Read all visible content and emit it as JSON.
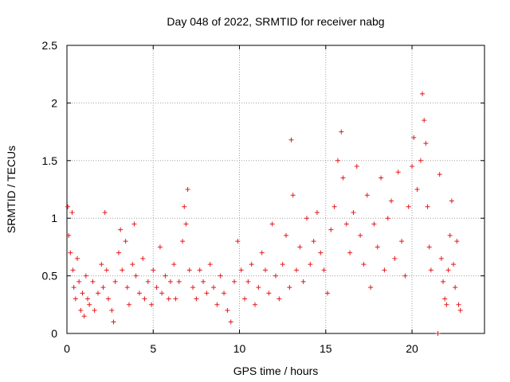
{
  "chart_data": {
    "type": "scatter",
    "title": "Day 048 of 2022, SRMTID for receiver nabg",
    "xlabel": "GPS time / hours",
    "ylabel": "SRMTID / TECUs",
    "xlim": [
      0,
      24.2
    ],
    "ylim": [
      0,
      2.5
    ],
    "x_ticks": [
      {
        "value": 0,
        "label": "0"
      },
      {
        "value": 5,
        "label": "5"
      },
      {
        "value": 10,
        "label": "10"
      },
      {
        "value": 15,
        "label": "15"
      },
      {
        "value": 20,
        "label": "20"
      }
    ],
    "y_ticks": [
      {
        "value": 0,
        "label": "0"
      },
      {
        "value": 0.5,
        "label": "0.5"
      },
      {
        "value": 1,
        "label": "1"
      },
      {
        "value": 1.5,
        "label": "1.5"
      },
      {
        "value": 2,
        "label": "2"
      },
      {
        "value": 2.5,
        "label": "2.5"
      }
    ],
    "grid": true,
    "marker": "+",
    "series_color": "#e41a1c",
    "series": [
      {
        "name": "SRMTID",
        "points": [
          [
            0.05,
            1.1
          ],
          [
            0.1,
            0.85
          ],
          [
            0.2,
            0.7
          ],
          [
            0.3,
            1.05
          ],
          [
            0.35,
            0.55
          ],
          [
            0.4,
            0.4
          ],
          [
            0.5,
            0.3
          ],
          [
            0.6,
            0.65
          ],
          [
            0.7,
            0.45
          ],
          [
            0.8,
            0.2
          ],
          [
            0.9,
            0.35
          ],
          [
            1.0,
            0.15
          ],
          [
            1.1,
            0.5
          ],
          [
            1.2,
            0.3
          ],
          [
            1.3,
            0.25
          ],
          [
            1.5,
            0.45
          ],
          [
            1.6,
            0.2
          ],
          [
            1.8,
            0.35
          ],
          [
            2.0,
            0.6
          ],
          [
            2.1,
            0.4
          ],
          [
            2.2,
            1.05
          ],
          [
            2.3,
            0.55
          ],
          [
            2.4,
            0.3
          ],
          [
            2.6,
            0.2
          ],
          [
            2.7,
            0.1
          ],
          [
            2.8,
            0.45
          ],
          [
            3.0,
            0.7
          ],
          [
            3.1,
            0.9
          ],
          [
            3.2,
            0.55
          ],
          [
            3.4,
            0.8
          ],
          [
            3.5,
            0.4
          ],
          [
            3.6,
            0.25
          ],
          [
            3.8,
            0.6
          ],
          [
            3.9,
            0.95
          ],
          [
            4.0,
            0.5
          ],
          [
            4.2,
            0.35
          ],
          [
            4.4,
            0.65
          ],
          [
            4.5,
            0.3
          ],
          [
            4.7,
            0.45
          ],
          [
            4.9,
            0.25
          ],
          [
            5.0,
            0.55
          ],
          [
            5.2,
            0.4
          ],
          [
            5.4,
            0.75
          ],
          [
            5.5,
            0.35
          ],
          [
            5.7,
            0.5
          ],
          [
            5.9,
            0.3
          ],
          [
            6.0,
            0.45
          ],
          [
            6.2,
            0.6
          ],
          [
            6.3,
            0.3
          ],
          [
            6.5,
            0.45
          ],
          [
            6.7,
            0.8
          ],
          [
            6.8,
            1.1
          ],
          [
            6.9,
            0.95
          ],
          [
            7.0,
            1.25
          ],
          [
            7.1,
            0.55
          ],
          [
            7.3,
            0.4
          ],
          [
            7.5,
            0.3
          ],
          [
            7.7,
            0.55
          ],
          [
            7.9,
            0.45
          ],
          [
            8.1,
            0.35
          ],
          [
            8.3,
            0.6
          ],
          [
            8.5,
            0.4
          ],
          [
            8.7,
            0.25
          ],
          [
            8.9,
            0.5
          ],
          [
            9.1,
            0.35
          ],
          [
            9.3,
            0.2
          ],
          [
            9.5,
            0.1
          ],
          [
            9.7,
            0.45
          ],
          [
            9.9,
            0.8
          ],
          [
            10.1,
            0.55
          ],
          [
            10.3,
            0.3
          ],
          [
            10.5,
            0.45
          ],
          [
            10.7,
            0.6
          ],
          [
            10.9,
            0.25
          ],
          [
            11.1,
            0.4
          ],
          [
            11.3,
            0.7
          ],
          [
            11.5,
            0.55
          ],
          [
            11.7,
            0.35
          ],
          [
            11.9,
            0.95
          ],
          [
            12.1,
            0.5
          ],
          [
            12.3,
            0.3
          ],
          [
            12.5,
            0.6
          ],
          [
            12.7,
            0.85
          ],
          [
            12.9,
            0.4
          ],
          [
            13.0,
            1.68
          ],
          [
            13.1,
            1.2
          ],
          [
            13.3,
            0.55
          ],
          [
            13.5,
            0.75
          ],
          [
            13.7,
            0.45
          ],
          [
            13.9,
            1.0
          ],
          [
            14.1,
            0.6
          ],
          [
            14.3,
            0.8
          ],
          [
            14.5,
            1.05
          ],
          [
            14.7,
            0.7
          ],
          [
            14.9,
            0.55
          ],
          [
            15.1,
            0.35
          ],
          [
            15.3,
            0.9
          ],
          [
            15.5,
            1.1
          ],
          [
            15.7,
            1.5
          ],
          [
            15.9,
            1.75
          ],
          [
            16.0,
            1.35
          ],
          [
            16.2,
            0.95
          ],
          [
            16.4,
            0.7
          ],
          [
            16.6,
            1.05
          ],
          [
            16.8,
            1.45
          ],
          [
            17.0,
            0.85
          ],
          [
            17.2,
            0.6
          ],
          [
            17.4,
            1.2
          ],
          [
            17.6,
            0.4
          ],
          [
            17.8,
            0.95
          ],
          [
            18.0,
            0.75
          ],
          [
            18.2,
            1.35
          ],
          [
            18.4,
            0.55
          ],
          [
            18.6,
            1.0
          ],
          [
            18.8,
            1.15
          ],
          [
            19.0,
            0.65
          ],
          [
            19.2,
            1.4
          ],
          [
            19.4,
            0.8
          ],
          [
            19.6,
            0.5
          ],
          [
            19.8,
            1.1
          ],
          [
            20.0,
            1.45
          ],
          [
            20.1,
            1.7
          ],
          [
            20.3,
            1.25
          ],
          [
            20.5,
            1.5
          ],
          [
            20.6,
            2.08
          ],
          [
            20.7,
            1.85
          ],
          [
            20.8,
            1.65
          ],
          [
            20.9,
            1.1
          ],
          [
            21.0,
            0.75
          ],
          [
            21.1,
            0.55
          ],
          [
            21.5,
            0.0
          ],
          [
            21.6,
            1.38
          ],
          [
            21.7,
            0.65
          ],
          [
            21.8,
            0.45
          ],
          [
            21.9,
            0.3
          ],
          [
            22.0,
            0.25
          ],
          [
            22.1,
            0.55
          ],
          [
            22.2,
            0.85
          ],
          [
            22.3,
            1.15
          ],
          [
            22.4,
            0.6
          ],
          [
            22.5,
            0.4
          ],
          [
            22.6,
            0.8
          ],
          [
            22.7,
            0.25
          ],
          [
            22.8,
            0.2
          ]
        ]
      }
    ]
  }
}
